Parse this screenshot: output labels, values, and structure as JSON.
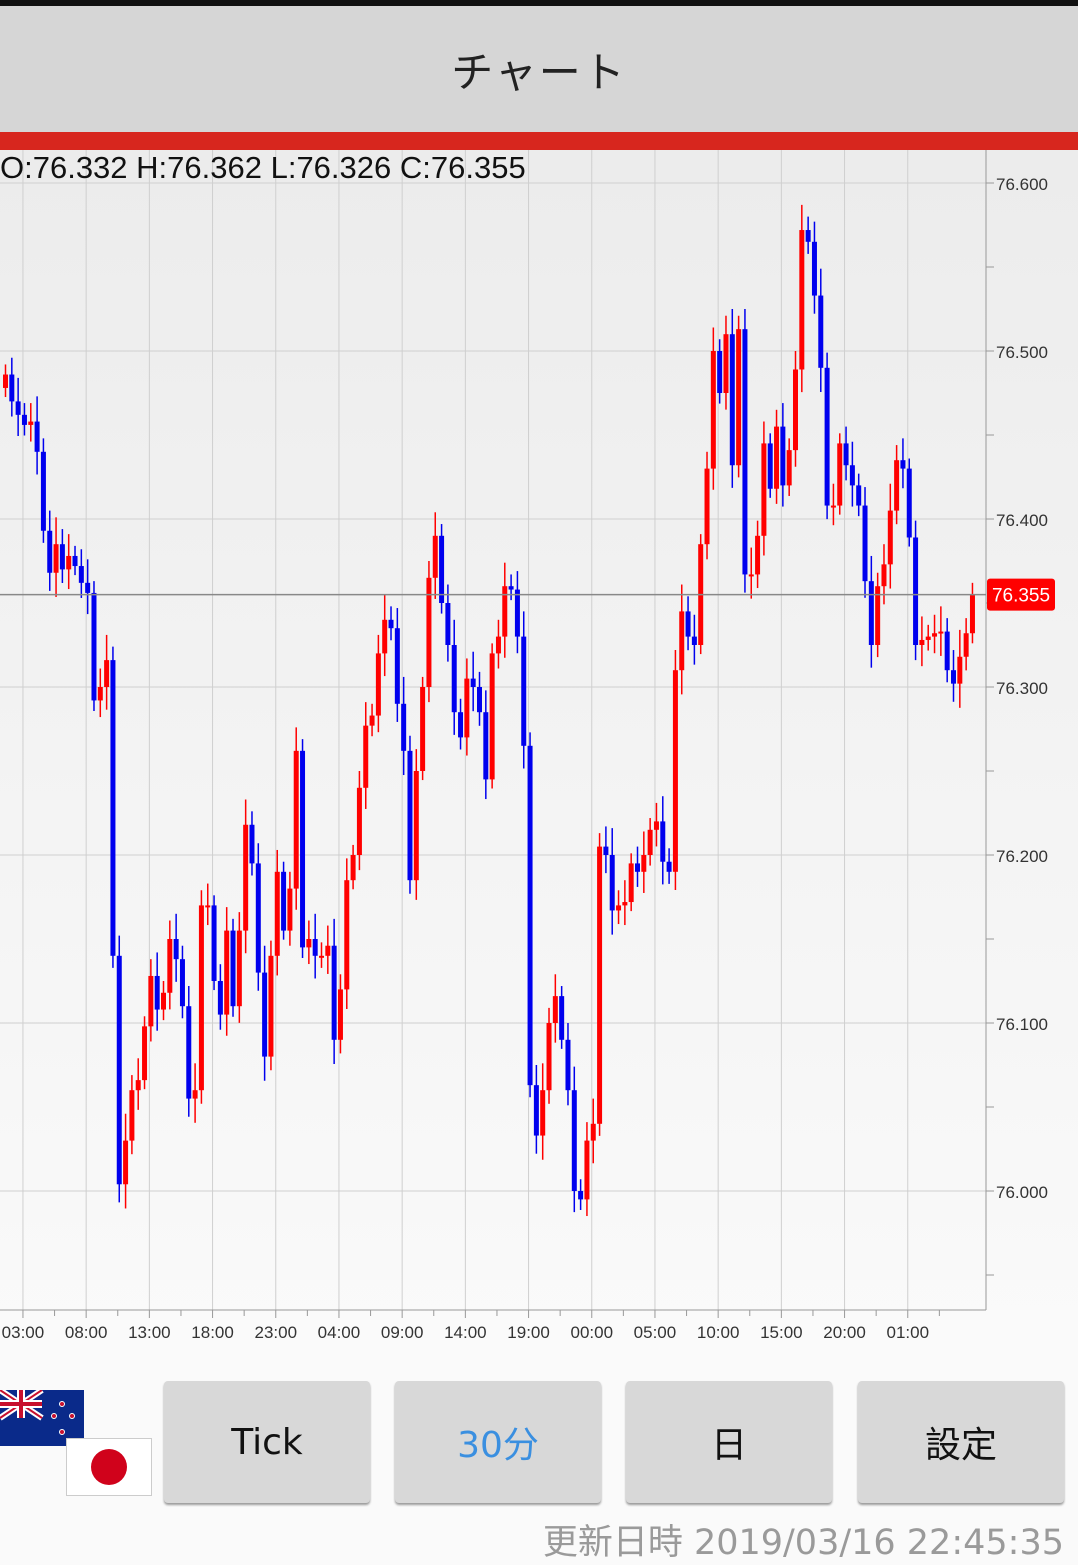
{
  "header": {
    "title": "チャート"
  },
  "ohlc_text": "O:76.332 H:76.362 L:76.326 C:76.355",
  "current_price_label": "76.355",
  "buttons": [
    {
      "label": "Tick",
      "selected": false
    },
    {
      "label": "30分",
      "selected": true
    },
    {
      "label": "日",
      "selected": false
    },
    {
      "label": "設定",
      "selected": false
    }
  ],
  "updated_text": "更新日時 2019/03/16 22:45:35",
  "flags": [
    "new-zealand-flag",
    "japan-flag"
  ],
  "colors": {
    "up": "#ff0000",
    "down": "#0000ee",
    "accent": "#d7261e",
    "selected_button_text": "#3a8fe0",
    "price_label_bg": "#ff0000"
  },
  "chart_data": {
    "type": "candlestick",
    "interval": "30分",
    "ylim": [
      75.93,
      76.62
    ],
    "y_ticks": [
      "76.600",
      "76.500",
      "76.400",
      "76.300",
      "76.200",
      "76.100",
      "76.000"
    ],
    "y_tick_values": [
      76.6,
      76.5,
      76.4,
      76.3,
      76.2,
      76.1,
      76.0
    ],
    "x_ticks": [
      "03:00",
      "08:00",
      "13:00",
      "18:00",
      "23:00",
      "04:00",
      "09:00",
      "14:00",
      "19:00",
      "00:00",
      "05:00",
      "10:00",
      "15:00",
      "20:00",
      "01:00"
    ],
    "x_tick_candle_index": [
      3,
      13,
      23,
      33,
      43,
      53,
      63,
      73,
      83,
      93,
      103,
      113,
      123,
      133,
      143
    ],
    "current_price": 76.355,
    "last_candle": {
      "open": 76.332,
      "high": 76.362,
      "low": 76.326,
      "close": 76.355
    },
    "first_open": 76.478,
    "closes": [
      76.486,
      76.47,
      76.462,
      76.456,
      76.458,
      76.44,
      76.393,
      76.368,
      76.385,
      76.37,
      76.378,
      76.372,
      76.362,
      76.356,
      76.292,
      76.3,
      76.316,
      76.14,
      76.004,
      76.03,
      76.06,
      76.066,
      76.098,
      76.128,
      76.108,
      76.118,
      76.15,
      76.138,
      76.11,
      76.055,
      76.06,
      76.17,
      76.17,
      76.125,
      76.105,
      76.155,
      76.11,
      76.155,
      76.218,
      76.195,
      76.13,
      76.08,
      76.14,
      76.19,
      76.155,
      76.18,
      76.262,
      76.145,
      76.15,
      76.14,
      76.14,
      76.146,
      76.09,
      76.12,
      76.185,
      76.2,
      76.24,
      76.277,
      76.283,
      76.32,
      76.34,
      76.335,
      76.29,
      76.262,
      76.185,
      76.25,
      76.3,
      76.365,
      76.39,
      76.35,
      76.325,
      76.285,
      76.27,
      76.305,
      76.3,
      76.285,
      76.245,
      76.32,
      76.33,
      76.36,
      76.358,
      76.33,
      76.265,
      76.063,
      76.033,
      76.06,
      76.1,
      76.116,
      76.09,
      76.06,
      76.0,
      75.995,
      76.03,
      76.04,
      76.205,
      76.2,
      76.167,
      76.17,
      76.172,
      76.195,
      76.19,
      76.2,
      76.215,
      76.22,
      76.196,
      76.19,
      76.31,
      76.345,
      76.33,
      76.325,
      76.385,
      76.43,
      76.5,
      76.475,
      76.51,
      76.432,
      76.513,
      76.367,
      76.367,
      76.39,
      76.445,
      76.418,
      76.455,
      76.42,
      76.441,
      76.489,
      76.572,
      76.565,
      76.533,
      76.49,
      76.408,
      76.408,
      76.445,
      76.432,
      76.42,
      76.408,
      76.363,
      76.325,
      76.36,
      76.373,
      76.405,
      76.435,
      76.43,
      76.389,
      76.325,
      76.328,
      76.33,
      76.332,
      76.333,
      76.31,
      76.302,
      76.318,
      76.332,
      76.355
    ],
    "grid": true,
    "y_axis_position": "right"
  }
}
